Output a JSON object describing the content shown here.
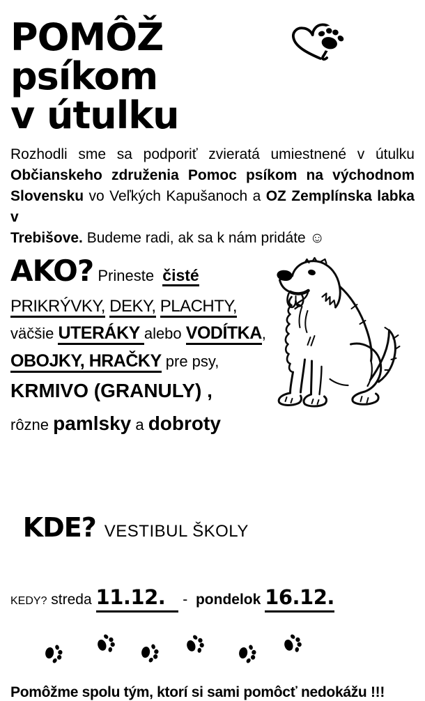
{
  "header": {
    "title_line1": "POMÔŽ psíkom",
    "title_line2": "v útulku",
    "icon": "heart-with-paw-print"
  },
  "intro": {
    "lines": [
      {
        "justify": true,
        "segments": [
          {
            "text": "Rozhodli sme sa podporiť zvieratá umiestnené v útulku",
            "style": "reg"
          }
        ]
      },
      {
        "justify": true,
        "segments": [
          {
            "text": "Občianskeho združenia Pomoc psíkom na východnom",
            "style": "bold"
          }
        ]
      },
      {
        "justify": true,
        "segments": [
          {
            "text": "Slovensku",
            "style": "bold"
          },
          {
            "text": " vo Veľkých Kapušanoch a ",
            "style": "reg"
          },
          {
            "text": "OZ Zemplínska labka v",
            "style": "bold"
          }
        ]
      },
      {
        "justify": false,
        "segments": [
          {
            "text": "Trebišove.",
            "style": "bold"
          },
          {
            "text": " Budeme radi, ak sa k nám pridáte ☺",
            "style": "reg"
          }
        ]
      }
    ]
  },
  "how": {
    "lines": [
      {
        "segments": [
          {
            "text": "AKO?",
            "style": "heading"
          },
          {
            "text": " Prineste  ",
            "style": "reg-lg"
          },
          {
            "text": "čisté",
            "style": "bold-lg ul"
          }
        ]
      },
      {
        "segments": [
          {
            "text": "PRIKRÝVKY,",
            "style": "caps ul"
          },
          {
            "text": " ",
            "style": "caps"
          },
          {
            "text": "DEKY,",
            "style": "caps ul"
          },
          {
            "text": " ",
            "style": "caps"
          },
          {
            "text": "PLACHTY,",
            "style": "caps ul"
          }
        ]
      },
      {
        "segments": [
          {
            "text": "väčšie ",
            "style": "reg-lg"
          },
          {
            "text": "UTERÁKY ",
            "style": "caps-b ul"
          },
          {
            "text": "alebo ",
            "style": "reg-lg"
          },
          {
            "text": "VODÍTKA",
            "style": "caps-b ul"
          },
          {
            "text": ",",
            "style": "reg-lg"
          }
        ]
      },
      {
        "segments": [
          {
            "text": "OBOJKY, HRAČKY",
            "style": "caps-b ul"
          },
          {
            "text": " pre psy,",
            "style": "reg-lg"
          }
        ]
      },
      {
        "segments": [
          {
            "text": "KRMIVO (GRANULY) ,",
            "style": "arial-b"
          }
        ]
      },
      {
        "segments": [
          {
            "text": "rôzne ",
            "style": "reg-lg"
          },
          {
            "text": "pamlsky",
            "style": "arial-b"
          },
          {
            "text": " a ",
            "style": "reg-lg"
          },
          {
            "text": "dobroty",
            "style": "arial-b"
          }
        ]
      }
    ]
  },
  "where": {
    "label": "KDE?",
    "value": "VESTIBUL ŠKOLY"
  },
  "when": {
    "segments": [
      {
        "text": "KEDY?",
        "style": "head2"
      },
      {
        "text": " streda ",
        "style": "when-reg"
      },
      {
        "text": "11.12.  ",
        "style": "date ul3"
      },
      {
        "text": " - ",
        "style": "when-reg"
      },
      {
        "text": " pondelok ",
        "style": "when-bold"
      },
      {
        "text": "16.12.",
        "style": "date ul3"
      }
    ]
  },
  "footer": {
    "text": "Pomôžme spolu tým, ktorí si sami pomôcť nedokážu !!!"
  },
  "decorations": {
    "header_icon": "heart-with-paw-print-icon",
    "dog_illustration": "sitting-dog-line-art",
    "paw_print_icon": "paw-print-icon",
    "paw_prints_count": 6
  },
  "colors": {
    "ink": "#000000",
    "background": "#ffffff"
  }
}
